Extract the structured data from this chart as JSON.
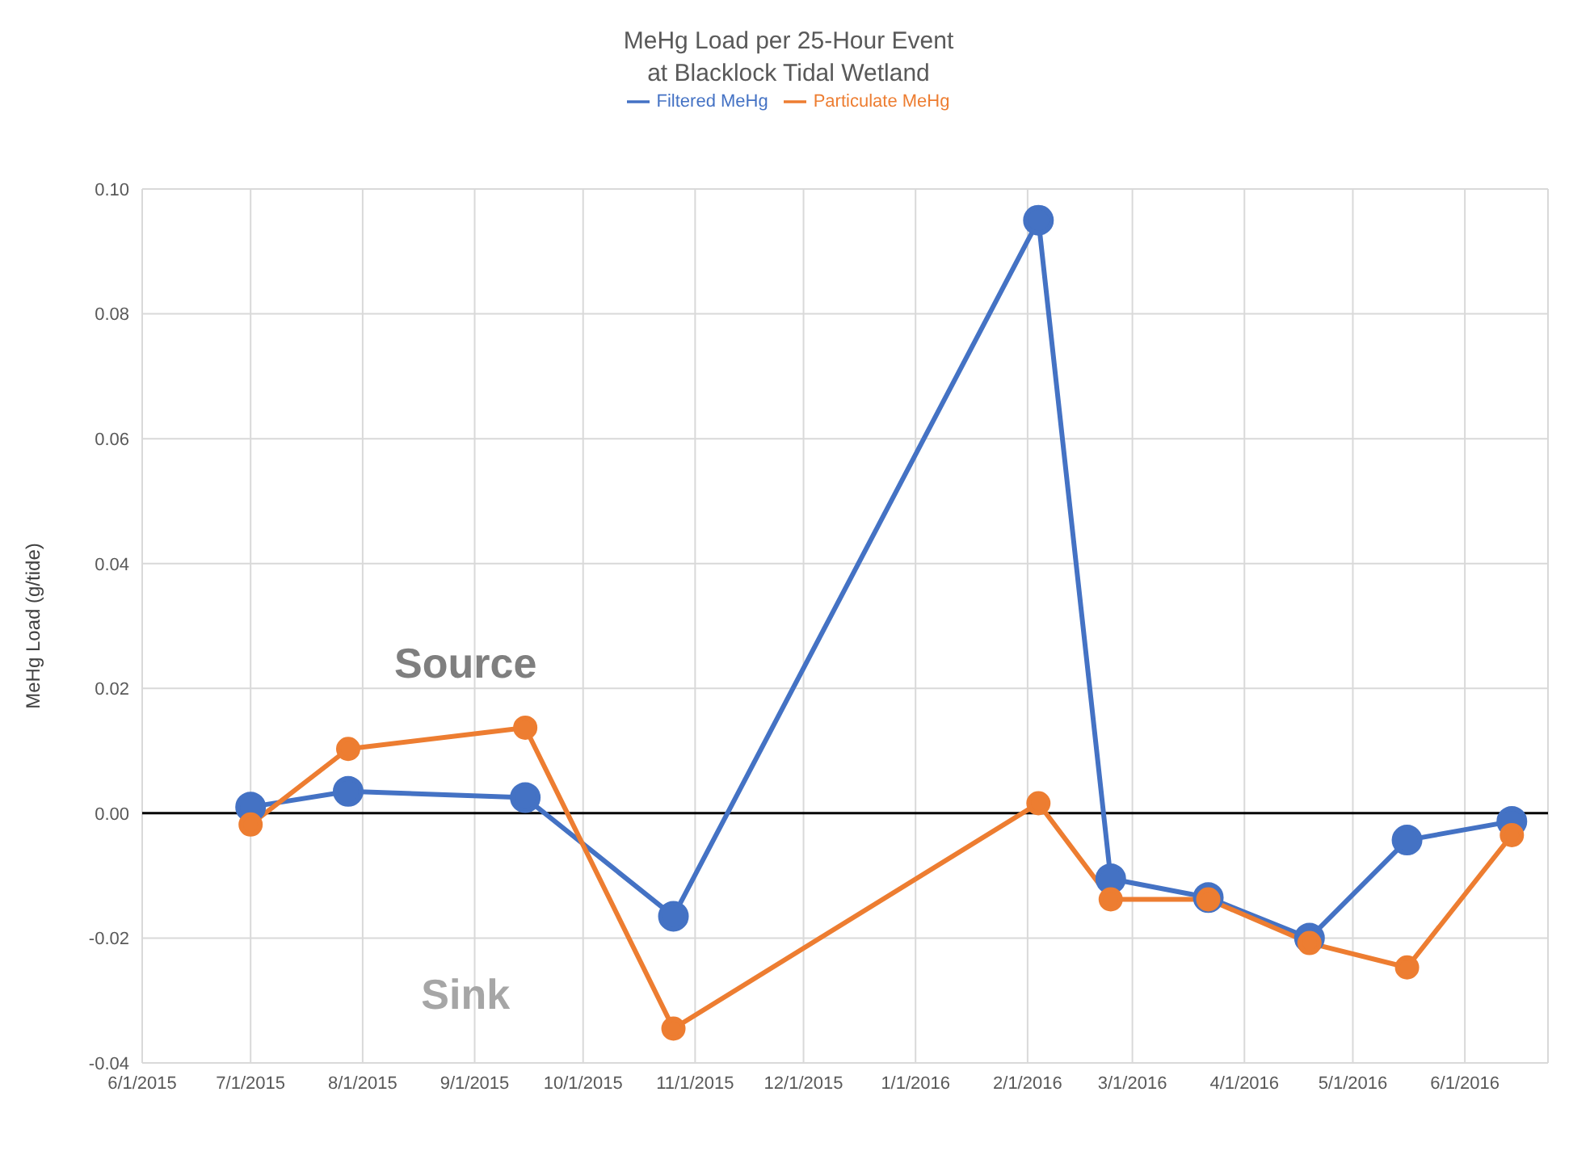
{
  "chart_data": {
    "type": "line",
    "title": "MeHg Load per 25-Hour Event\nat Blacklock Tidal Wetland",
    "ylabel": "MeHg Load (g/tide)",
    "x": [
      "2015-07-01",
      "2015-07-28",
      "2015-09-15",
      "2015-10-26",
      "2016-02-04",
      "2016-02-24",
      "2016-03-22",
      "2016-04-19",
      "2016-05-16",
      "2016-06-14"
    ],
    "series": [
      {
        "name": "Filtered MeHg",
        "color": "#4472c4",
        "values": [
          0.001,
          0.0035,
          0.0025,
          -0.0165,
          0.095,
          -0.0105,
          -0.0135,
          -0.02,
          -0.0043,
          -0.0013
        ]
      },
      {
        "name": "Particulate MeHg",
        "color": "#ed7d31",
        "values": [
          -0.0018,
          0.0103,
          0.0137,
          -0.0345,
          0.0016,
          -0.0138,
          -0.0138,
          -0.0208,
          -0.0247,
          -0.0035
        ]
      }
    ],
    "xlim": [
      "2015-06-01",
      "2016-06-24"
    ],
    "xticks": [
      {
        "value": "2015-06-01",
        "label": "6/1/2015"
      },
      {
        "value": "2015-07-01",
        "label": "7/1/2015"
      },
      {
        "value": "2015-08-01",
        "label": "8/1/2015"
      },
      {
        "value": "2015-09-01",
        "label": "9/1/2015"
      },
      {
        "value": "2015-10-01",
        "label": "10/1/2015"
      },
      {
        "value": "2015-11-01",
        "label": "11/1/2015"
      },
      {
        "value": "2015-12-01",
        "label": "12/1/2015"
      },
      {
        "value": "2016-01-01",
        "label": "1/1/2016"
      },
      {
        "value": "2016-02-01",
        "label": "2/1/2016"
      },
      {
        "value": "2016-03-01",
        "label": "3/1/2016"
      },
      {
        "value": "2016-04-01",
        "label": "4/1/2016"
      },
      {
        "value": "2016-05-01",
        "label": "5/1/2016"
      },
      {
        "value": "2016-06-01",
        "label": "6/1/2016"
      }
    ],
    "ylim": [
      -0.04,
      0.1
    ],
    "yticks": [
      {
        "value": -0.04,
        "label": "-0.04"
      },
      {
        "value": -0.02,
        "label": "-0.02"
      },
      {
        "value": 0,
        "label": "0.00"
      },
      {
        "value": 0.02,
        "label": "0.02"
      },
      {
        "value": 0.04,
        "label": "0.04"
      },
      {
        "value": 0.06,
        "label": "0.06"
      },
      {
        "value": 0.08,
        "label": "0.08"
      },
      {
        "value": 0.1,
        "label": "0.10"
      }
    ],
    "ref_lines": [
      {
        "axis": "y",
        "value": 0,
        "color": "#000000"
      }
    ],
    "annotations": [
      "Source",
      "Sink"
    ],
    "grid": true,
    "legend": "top",
    "marker": "circle",
    "line_style": "solid"
  }
}
